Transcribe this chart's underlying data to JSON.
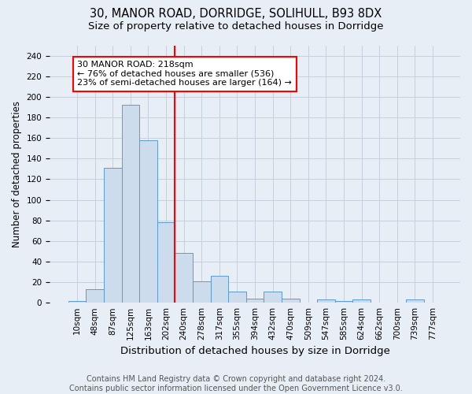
{
  "title1": "30, MANOR ROAD, DORRIDGE, SOLIHULL, B93 8DX",
  "title2": "Size of property relative to detached houses in Dorridge",
  "xlabel": "Distribution of detached houses by size in Dorridge",
  "ylabel": "Number of detached properties",
  "bar_labels": [
    "10sqm",
    "48sqm",
    "87sqm",
    "125sqm",
    "163sqm",
    "202sqm",
    "240sqm",
    "278sqm",
    "317sqm",
    "355sqm",
    "394sqm",
    "432sqm",
    "470sqm",
    "509sqm",
    "547sqm",
    "585sqm",
    "624sqm",
    "662sqm",
    "700sqm",
    "739sqm",
    "777sqm"
  ],
  "bar_values": [
    2,
    13,
    131,
    192,
    158,
    78,
    48,
    21,
    26,
    11,
    4,
    11,
    4,
    0,
    3,
    2,
    3,
    0,
    0,
    3,
    0
  ],
  "bar_color": "#cddcec",
  "bar_edge_color": "#5b9bd5",
  "annotation_box_text": "30 MANOR ROAD: 218sqm\n← 76% of detached houses are smaller (536)\n23% of semi-detached houses are larger (164) →",
  "annotation_box_color": "white",
  "annotation_box_edge_color": "red",
  "vline_x_index": 5.5,
  "vline_color": "red",
  "ylim": [
    0,
    250
  ],
  "yticks": [
    0,
    20,
    40,
    60,
    80,
    100,
    120,
    140,
    160,
    180,
    200,
    220,
    240
  ],
  "grid_color": "#c8d0dc",
  "footnote": "Contains HM Land Registry data © Crown copyright and database right 2024.\nContains public sector information licensed under the Open Government Licence v3.0.",
  "bg_color": "#e8eef5",
  "title1_fontsize": 10.5,
  "title2_fontsize": 9.5,
  "xlabel_fontsize": 9.5,
  "ylabel_fontsize": 8.5,
  "tick_fontsize": 7.5,
  "footnote_fontsize": 7.0,
  "annotation_fontsize": 8.0
}
